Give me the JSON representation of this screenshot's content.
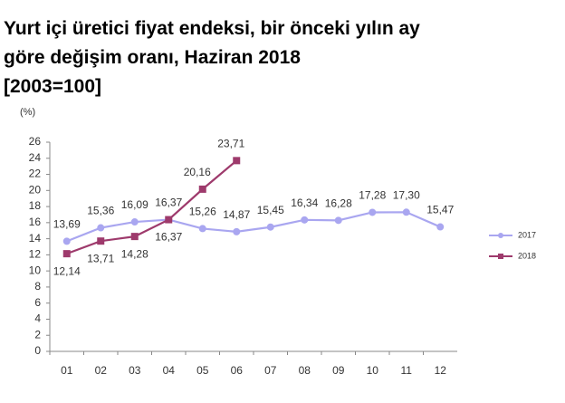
{
  "chart_data": {
    "type": "line",
    "title": [
      "Yurt içi üretici fiyat endeksi, bir önceki yılın ay",
      "göre değişim oranı, Haziran 2018",
      "[2003=100]"
    ],
    "y_label": "(%)",
    "categories": [
      "01",
      "02",
      "03",
      "04",
      "05",
      "06",
      "07",
      "08",
      "09",
      "10",
      "11",
      "12"
    ],
    "series": [
      {
        "name": "2017",
        "color": "#a9a6f0",
        "marker": "circle",
        "values": [
          13.69,
          15.36,
          16.09,
          16.37,
          15.26,
          14.87,
          15.45,
          16.34,
          16.28,
          17.28,
          17.3,
          15.47
        ],
        "value_labels": [
          "13,69",
          "15,36",
          "16,09",
          "16,37",
          "15,26",
          "14,87",
          "15,45",
          "16,34",
          "16,28",
          "17,28",
          "17,30",
          "15,47"
        ]
      },
      {
        "name": "2018",
        "color": "#9e3a6c",
        "marker": "square",
        "values": [
          12.14,
          13.71,
          14.28,
          16.37,
          20.16,
          23.71,
          null,
          null,
          null,
          null,
          null,
          null
        ],
        "value_labels": [
          "12,14",
          "13,71",
          "14,28",
          "16,37",
          "20,16",
          "23,71",
          null,
          null,
          null,
          null,
          null,
          null
        ]
      }
    ],
    "ylim": [
      0,
      26
    ],
    "yticks": [
      0,
      2,
      4,
      6,
      8,
      10,
      12,
      14,
      16,
      18,
      20,
      22,
      24,
      26
    ],
    "grid": false
  }
}
